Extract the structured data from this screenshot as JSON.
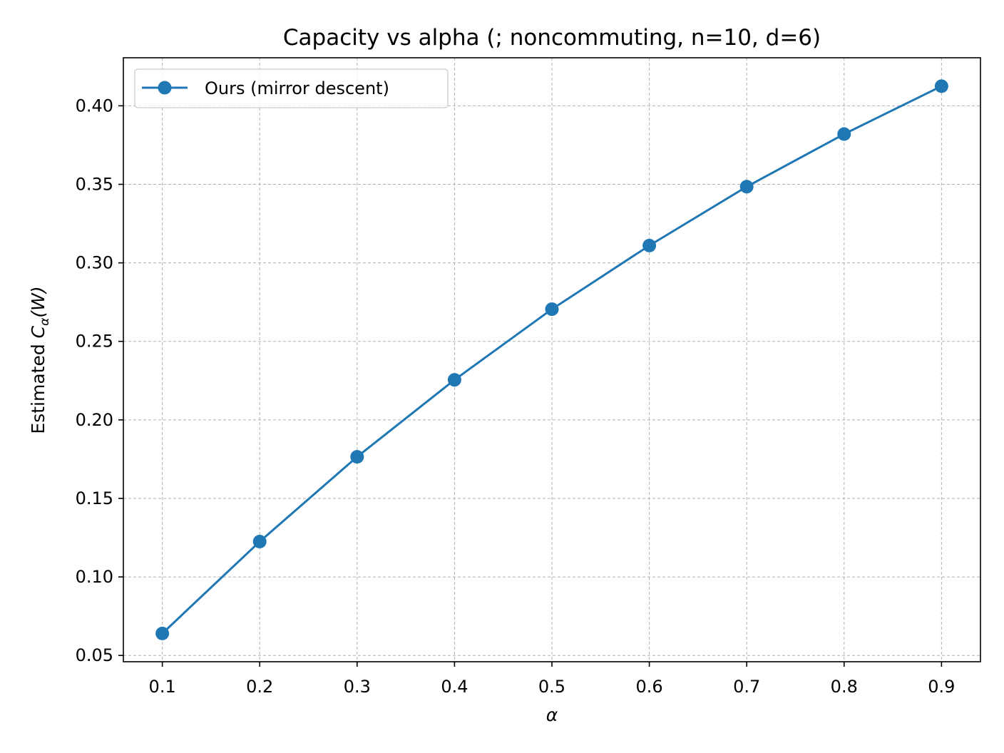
{
  "chart_data": {
    "type": "line",
    "title": "Capacity vs alpha (; noncommuting, n=10, d=6)",
    "xlabel": "α",
    "ylabel_prefix": "Estimated ",
    "ylabel_symbol": "C",
    "ylabel_subscript": "α",
    "ylabel_suffix": "(W)",
    "xlim": [
      0.06,
      0.94
    ],
    "ylim": [
      0.046,
      0.4306
    ],
    "x_ticks": [
      0.1,
      0.2,
      0.3,
      0.4,
      0.5,
      0.6,
      0.7,
      0.8,
      0.9
    ],
    "x_tick_labels": [
      "0.1",
      "0.2",
      "0.3",
      "0.4",
      "0.5",
      "0.6",
      "0.7",
      "0.8",
      "0.9"
    ],
    "y_ticks": [
      0.05,
      0.1,
      0.15,
      0.2,
      0.25,
      0.3,
      0.35,
      0.4
    ],
    "y_tick_labels": [
      "0.05",
      "0.10",
      "0.15",
      "0.20",
      "0.25",
      "0.30",
      "0.35",
      "0.40"
    ],
    "grid": true,
    "legend_position": "top-left",
    "series": [
      {
        "name": "Ours (mirror descent)",
        "color": "#1f77b4",
        "marker": "circle",
        "x": [
          0.1,
          0.2,
          0.3,
          0.4,
          0.5,
          0.6,
          0.7,
          0.8,
          0.9
        ],
        "y": [
          0.064,
          0.1225,
          0.1765,
          0.2255,
          0.2705,
          0.311,
          0.3485,
          0.382,
          0.4125
        ]
      }
    ]
  }
}
